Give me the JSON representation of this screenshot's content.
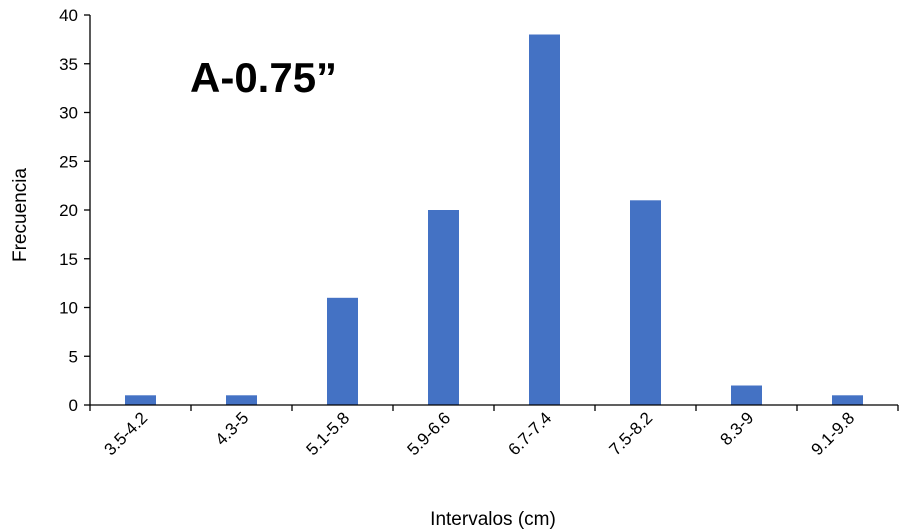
{
  "chart_data": {
    "type": "bar",
    "title": "A-0.75”",
    "xlabel": "Intervalos (cm)",
    "ylabel": "Frecuencia",
    "categories": [
      "3.5-4.2",
      "4.3-5",
      "5.1-5.8",
      "5.9-6.6",
      "6.7-7.4",
      "7.5-8.2",
      "8.3-9",
      "9.1-9.8"
    ],
    "values": [
      1,
      1,
      11,
      20,
      38,
      21,
      2,
      1
    ],
    "ylim": [
      0,
      40
    ],
    "yticks": [
      0,
      5,
      10,
      15,
      20,
      25,
      30,
      35,
      40
    ],
    "grid": false,
    "legend": "none",
    "bar_color": "#4472C4",
    "axis_color": "#000000"
  }
}
